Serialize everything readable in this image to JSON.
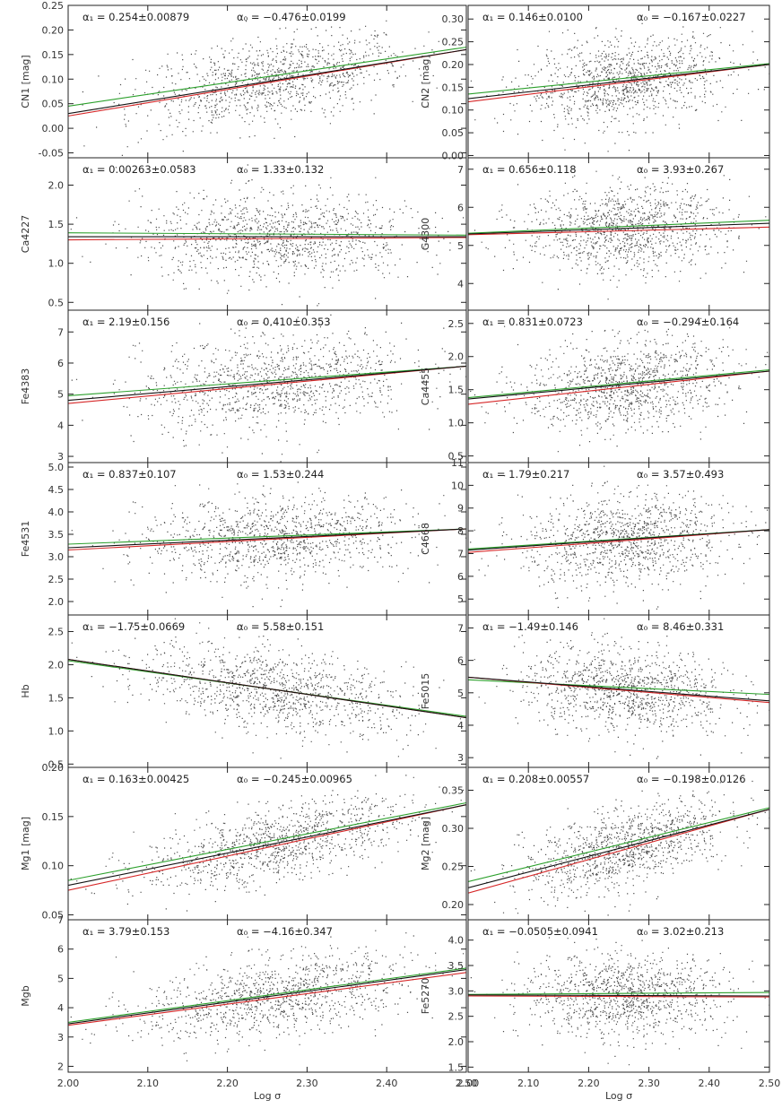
{
  "chart_data": {
    "type": "scatter",
    "layout": "7 rows x 2 columns of panels sharing the x axis",
    "xlabel": "Log σ",
    "xlim": [
      2.0,
      2.5
    ],
    "xticks": [
      2.0,
      2.1,
      2.2,
      2.3,
      2.4,
      2.5
    ],
    "xtick_labels": [
      "2.00",
      "2.10",
      "2.20",
      "2.30",
      "2.40",
      "2.50"
    ],
    "line_colors": {
      "points": "#000000",
      "black_fit": "#111111",
      "red_fit": "#d62728",
      "green_fit": "#2ca02c"
    },
    "panels": [
      {
        "ylabel": "CN1 [mag]",
        "ylim": [
          -0.06,
          0.25
        ],
        "yticks": [
          -0.05,
          0.0,
          0.05,
          0.1,
          0.15,
          0.2,
          0.25
        ],
        "ytick_labels": [
          "-0.05",
          "0.00",
          "0.05",
          "0.10",
          "0.15",
          "0.20",
          "0.25"
        ],
        "alpha_label": "α₁ = 0.254±0.00879",
        "beta_label": "α₀ = −0.476±0.0199",
        "fit_black": [
          0.03,
          0.16
        ],
        "fit_red": [
          0.025,
          0.16
        ],
        "fit_green": [
          0.045,
          0.165
        ],
        "scatter_sd": 0.04
      },
      {
        "ylabel": "CN2 [mag]",
        "ylim": [
          -0.005,
          0.33
        ],
        "yticks": [
          0.0,
          0.05,
          0.1,
          0.15,
          0.2,
          0.25,
          0.3
        ],
        "ytick_labels": [
          "0.00",
          "0.05",
          "0.10",
          "0.15",
          "0.20",
          "0.25",
          "0.30"
        ],
        "alpha_label": "α₁ = 0.146±0.0100",
        "beta_label": "α₀ = −0.167±0.0227",
        "fit_black": [
          0.125,
          0.2
        ],
        "fit_red": [
          0.118,
          0.2
        ],
        "fit_green": [
          0.135,
          0.202
        ],
        "scatter_sd": 0.045
      },
      {
        "ylabel": "Ca4227",
        "ylim": [
          0.4,
          2.35
        ],
        "yticks": [
          0.5,
          1.0,
          1.5,
          2.0
        ],
        "ytick_labels": [
          "0.5",
          "1.0",
          "1.5",
          "2.0"
        ],
        "alpha_label": "α₁ = 0.00263±0.0583",
        "beta_label": "α₀ = 1.33±0.132",
        "fit_black": [
          1.34,
          1.34
        ],
        "fit_red": [
          1.3,
          1.33
        ],
        "fit_green": [
          1.39,
          1.36
        ],
        "scatter_sd": 0.28
      },
      {
        "ylabel": "G4300",
        "ylim": [
          3.3,
          7.3
        ],
        "yticks": [
          4,
          5,
          6,
          7
        ],
        "ytick_labels": [
          "4",
          "5",
          "6",
          "7"
        ],
        "alpha_label": "α₁ = 0.656±0.118",
        "beta_label": "α₀ = 3.93±0.267",
        "fit_black": [
          5.3,
          5.58
        ],
        "fit_red": [
          5.28,
          5.48
        ],
        "fit_green": [
          5.32,
          5.66
        ],
        "scatter_sd": 0.55
      },
      {
        "ylabel": "Fe4383",
        "ylim": [
          2.8,
          7.7
        ],
        "yticks": [
          3,
          4,
          5,
          6,
          7
        ],
        "ytick_labels": [
          "3",
          "4",
          "5",
          "6",
          "7"
        ],
        "alpha_label": "α₁ = 2.19±0.156",
        "beta_label": "α₀ = 0.410±0.353",
        "fit_black": [
          4.8,
          5.9
        ],
        "fit_red": [
          4.7,
          5.9
        ],
        "fit_green": [
          4.95,
          5.9
        ],
        "scatter_sd": 0.75
      },
      {
        "ylabel": "Ca4455",
        "ylim": [
          0.4,
          2.7
        ],
        "yticks": [
          0.5,
          1.0,
          1.5,
          2.0,
          2.5
        ],
        "ytick_labels": [
          "0.5",
          "1.0",
          "1.5",
          "2.0",
          "2.5"
        ],
        "alpha_label": "α₁ = 0.831±0.0723",
        "beta_label": "α₀ = −0.294±0.164",
        "fit_black": [
          1.36,
          1.78
        ],
        "fit_red": [
          1.28,
          1.78
        ],
        "fit_green": [
          1.38,
          1.8
        ],
        "scatter_sd": 0.33
      },
      {
        "ylabel": "Fe4531",
        "ylim": [
          1.7,
          5.1
        ],
        "yticks": [
          2.0,
          2.5,
          3.0,
          3.5,
          4.0,
          4.5,
          5.0
        ],
        "ytick_labels": [
          "2.0",
          "2.5",
          "3.0",
          "3.5",
          "4.0",
          "4.5",
          "5.0"
        ],
        "alpha_label": "α₁ = 0.837±0.107",
        "beta_label": "α₀ = 1.53±0.244",
        "fit_black": [
          3.2,
          3.62
        ],
        "fit_red": [
          3.15,
          3.62
        ],
        "fit_green": [
          3.28,
          3.62
        ],
        "scatter_sd": 0.45
      },
      {
        "ylabel": "C4668",
        "ylim": [
          4.3,
          11.0
        ],
        "yticks": [
          5,
          6,
          7,
          8,
          9,
          10,
          11
        ],
        "ytick_labels": [
          "5",
          "6",
          "7",
          "8",
          "9",
          "10",
          "11"
        ],
        "alpha_label": "α₁ = 1.79±0.217",
        "beta_label": "α₀ = 3.57±0.493",
        "fit_black": [
          7.15,
          8.05
        ],
        "fit_red": [
          7.05,
          8.05
        ],
        "fit_green": [
          7.2,
          8.05
        ],
        "scatter_sd": 1.0
      },
      {
        "ylabel": "Hb",
        "ylim": [
          0.45,
          2.75
        ],
        "yticks": [
          0.5,
          1.0,
          1.5,
          2.0,
          2.5
        ],
        "ytick_labels": [
          "0.5",
          "1.0",
          "1.5",
          "2.0",
          "2.5"
        ],
        "alpha_label": "α₁ = −1.75±0.0669",
        "beta_label": "α₀ = 5.58±0.151",
        "fit_black": [
          2.08,
          1.2
        ],
        "fit_red": [
          2.08,
          1.2
        ],
        "fit_green": [
          2.06,
          1.22
        ],
        "scatter_sd": 0.3
      },
      {
        "ylabel": "Fe5015",
        "ylim": [
          2.7,
          7.4
        ],
        "yticks": [
          3,
          4,
          5,
          6,
          7
        ],
        "ytick_labels": [
          "3",
          "4",
          "5",
          "6",
          "7"
        ],
        "alpha_label": "α₁ = −1.49±0.146",
        "beta_label": "α₀ = 8.46±0.331",
        "fit_black": [
          5.48,
          4.75
        ],
        "fit_red": [
          5.48,
          4.7
        ],
        "fit_green": [
          5.4,
          4.95
        ],
        "scatter_sd": 0.65
      },
      {
        "ylabel": "Mg1 [mag]",
        "ylim": [
          0.045,
          0.2
        ],
        "yticks": [
          0.05,
          0.1,
          0.15,
          0.2
        ],
        "ytick_labels": [
          "0.05",
          "0.10",
          "0.15",
          "0.20"
        ],
        "alpha_label": "α₁ = 0.163±0.00425",
        "beta_label": "α₀ = −0.245±0.00965",
        "fit_black": [
          0.08,
          0.162
        ],
        "fit_red": [
          0.075,
          0.162
        ],
        "fit_green": [
          0.085,
          0.164
        ],
        "scatter_sd": 0.018
      },
      {
        "ylabel": "Mg2 [mag]",
        "ylim": [
          0.18,
          0.38
        ],
        "yticks": [
          0.2,
          0.25,
          0.3,
          0.35
        ],
        "ytick_labels": [
          "0.20",
          "0.25",
          "0.30",
          "0.35"
        ],
        "alpha_label": "α₁ = 0.208±0.00557",
        "beta_label": "α₀ = −0.198±0.0126",
        "fit_black": [
          0.222,
          0.325
        ],
        "fit_red": [
          0.215,
          0.325
        ],
        "fit_green": [
          0.23,
          0.327
        ],
        "scatter_sd": 0.025
      },
      {
        "ylabel": "Mgb",
        "ylim": [
          1.8,
          7.0
        ],
        "yticks": [
          2,
          3,
          4,
          5,
          6,
          7
        ],
        "ytick_labels": [
          "2",
          "3",
          "4",
          "5",
          "6",
          "7"
        ],
        "alpha_label": "α₁ = 3.79±0.153",
        "beta_label": "α₀ = −4.16±0.347",
        "fit_black": [
          3.45,
          5.3
        ],
        "fit_red": [
          3.4,
          5.2
        ],
        "fit_green": [
          3.5,
          5.35
        ],
        "scatter_sd": 0.65
      },
      {
        "ylabel": "Fe5270",
        "ylim": [
          1.4,
          4.4
        ],
        "yticks": [
          1.5,
          2.0,
          2.5,
          3.0,
          3.5,
          4.0
        ],
        "ytick_labels": [
          "1.5",
          "2.0",
          "2.5",
          "3.0",
          "3.5",
          "4.0"
        ],
        "alpha_label": "α₁ = −0.0505±0.0941",
        "beta_label": "α₀ = 3.02±0.213",
        "fit_black": [
          2.92,
          2.9
        ],
        "fit_red": [
          2.9,
          2.88
        ],
        "fit_green": [
          2.93,
          2.97
        ],
        "scatter_sd": 0.4
      }
    ]
  }
}
